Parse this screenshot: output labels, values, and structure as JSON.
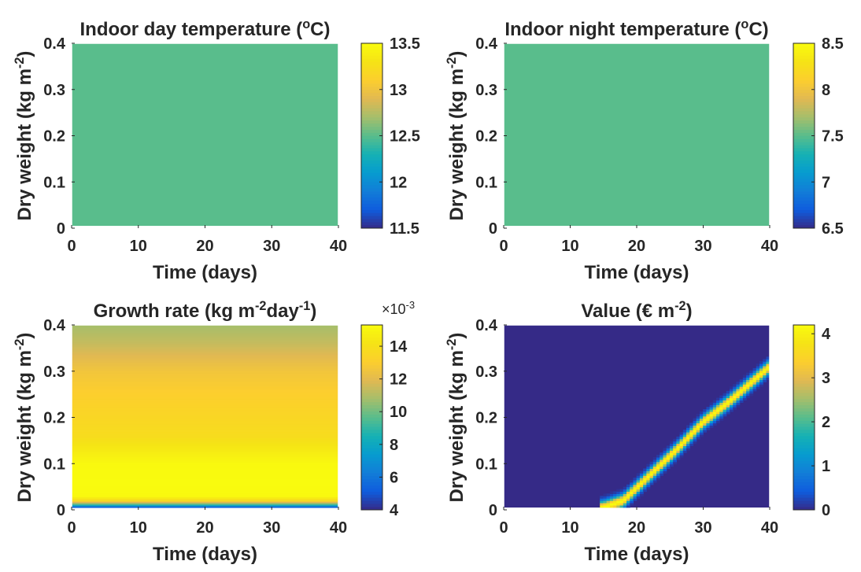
{
  "chart_data": [
    {
      "type": "heatmap",
      "title_parts": [
        {
          "t": "Indoor day temperature ("
        },
        {
          "t": "o",
          "s": "sup"
        },
        {
          "t": "C)"
        }
      ],
      "xlabel": "Time (days)",
      "ylabel_parts": [
        {
          "t": "Dry weight (kg m"
        },
        {
          "t": "-2",
          "s": "sup"
        },
        {
          "t": ")"
        }
      ],
      "xlim": [
        0,
        40
      ],
      "ylim": [
        0,
        0.4
      ],
      "xticks": [
        0,
        10,
        20,
        30,
        40
      ],
      "yticks": [
        0,
        0.1,
        0.2,
        0.3,
        0.4
      ],
      "ytick_labels": [
        "0",
        "0.1",
        "0.2",
        "0.3",
        "0.4"
      ],
      "colorbar": {
        "range": [
          11.5,
          13.5
        ],
        "ticks": [
          11.5,
          12,
          12.5,
          13,
          13.5
        ],
        "tick_labels": [
          "11.5",
          "12",
          "12.5",
          "13",
          "13.5"
        ],
        "multiplier": null
      },
      "field": {
        "kind": "constant",
        "value": 12.5,
        "data_y_min": 0.005
      }
    },
    {
      "type": "heatmap",
      "title_parts": [
        {
          "t": "Indoor night temperature ("
        },
        {
          "t": "o",
          "s": "sup"
        },
        {
          "t": "C)"
        }
      ],
      "xlabel": "Time (days)",
      "ylabel_parts": [
        {
          "t": "Dry weight (kg m"
        },
        {
          "t": "-2",
          "s": "sup"
        },
        {
          "t": ")"
        }
      ],
      "xlim": [
        0,
        40
      ],
      "ylim": [
        0,
        0.4
      ],
      "xticks": [
        0,
        10,
        20,
        30,
        40
      ],
      "yticks": [
        0,
        0.1,
        0.2,
        0.3,
        0.4
      ],
      "ytick_labels": [
        "0",
        "0.1",
        "0.2",
        "0.3",
        "0.4"
      ],
      "colorbar": {
        "range": [
          6.5,
          8.5
        ],
        "ticks": [
          6.5,
          7,
          7.5,
          8,
          8.5
        ],
        "tick_labels": [
          "6.5",
          "7",
          "7.5",
          "8",
          "8.5"
        ],
        "multiplier": null
      },
      "field": {
        "kind": "constant",
        "value": 7.5,
        "data_y_min": 0.005
      }
    },
    {
      "type": "heatmap",
      "title_parts": [
        {
          "t": "Growth rate (kg m"
        },
        {
          "t": "-2",
          "s": "sup"
        },
        {
          "t": "day"
        },
        {
          "t": "-1",
          "s": "sup"
        },
        {
          "t": ")"
        }
      ],
      "xlabel": "Time (days)",
      "ylabel_parts": [
        {
          "t": "Dry weight (kg m"
        },
        {
          "t": "-2",
          "s": "sup"
        },
        {
          "t": ")"
        }
      ],
      "xlim": [
        0,
        40
      ],
      "ylim": [
        0,
        0.4
      ],
      "xticks": [
        0,
        10,
        20,
        30,
        40
      ],
      "yticks": [
        0,
        0.1,
        0.2,
        0.3,
        0.4
      ],
      "ytick_labels": [
        "0",
        "0.1",
        "0.2",
        "0.3",
        "0.4"
      ],
      "colorbar": {
        "range": [
          4,
          15.3
        ],
        "ticks": [
          4,
          6,
          8,
          10,
          12,
          14
        ],
        "tick_labels": [
          "4",
          "6",
          "8",
          "10",
          "12",
          "14"
        ],
        "multiplier": {
          "base": "×10",
          "exp": "-3"
        }
      },
      "field": {
        "kind": "vertical_profile",
        "data_y_min": 0.005,
        "profile": [
          [
            0.005,
            4
          ],
          [
            0.01,
            8
          ],
          [
            0.015,
            11
          ],
          [
            0.02,
            13.5
          ],
          [
            0.03,
            15.2
          ],
          [
            0.06,
            15.3
          ],
          [
            0.1,
            15.2
          ],
          [
            0.13,
            14.5
          ],
          [
            0.16,
            13.8
          ],
          [
            0.2,
            13.5
          ],
          [
            0.25,
            13.1
          ],
          [
            0.3,
            12.6
          ],
          [
            0.33,
            12.0
          ],
          [
            0.36,
            11.4
          ],
          [
            0.4,
            10.8
          ]
        ]
      }
    },
    {
      "type": "heatmap",
      "title_parts": [
        {
          "t": "Value (€ m"
        },
        {
          "t": "-2",
          "s": "sup"
        },
        {
          "t": ")"
        }
      ],
      "xlabel": "Time (days)",
      "ylabel_parts": [
        {
          "t": "Dry weight (kg m"
        },
        {
          "t": "-2",
          "s": "sup"
        },
        {
          "t": ")"
        }
      ],
      "xlim": [
        0,
        40
      ],
      "ylim": [
        0,
        0.4
      ],
      "xticks": [
        0,
        10,
        20,
        30,
        40
      ],
      "yticks": [
        0,
        0.1,
        0.2,
        0.3,
        0.4
      ],
      "ytick_labels": [
        "0",
        "0.1",
        "0.2",
        "0.3",
        "0.4"
      ],
      "colorbar": {
        "range": [
          0,
          4.2
        ],
        "ticks": [
          0,
          1,
          2,
          3,
          4
        ],
        "tick_labels": [
          "0",
          "1",
          "2",
          "3",
          "4"
        ],
        "multiplier": null
      },
      "field": {
        "kind": "ridge",
        "data_y_min": 0.005,
        "background": 0,
        "peak": 4.2,
        "width_y": 0.009,
        "ridge": [
          [
            15,
            0.005
          ],
          [
            18,
            0.02
          ],
          [
            22,
            0.075
          ],
          [
            26,
            0.13
          ],
          [
            30,
            0.19
          ],
          [
            34,
            0.235
          ],
          [
            38,
            0.285
          ],
          [
            40,
            0.31
          ]
        ]
      }
    }
  ]
}
